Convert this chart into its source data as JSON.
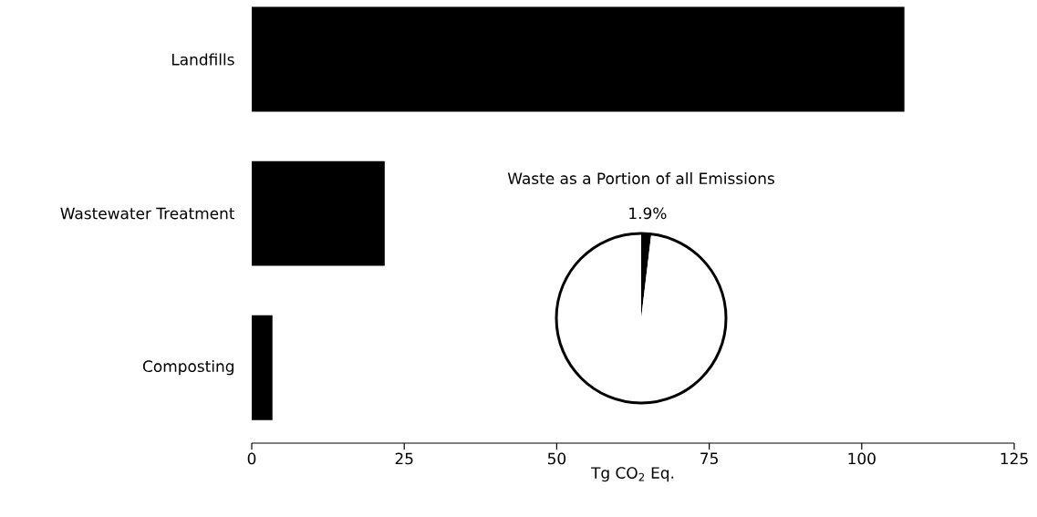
{
  "chart_data": [
    {
      "type": "bar",
      "orientation": "horizontal",
      "categories": [
        "Landfills",
        "Wastewater Treatment",
        "Composting"
      ],
      "values": [
        107,
        21.8,
        3.4
      ],
      "color": "#000000",
      "xlabel": "Tg CO$_{2}$ Eq.",
      "xlim": [
        0,
        125
      ],
      "xticks": [
        0,
        25,
        50,
        75,
        100,
        125
      ],
      "grid": false
    },
    {
      "type": "pie",
      "title": "Waste as a Portion of all Emissions",
      "categories": [
        null,
        null
      ],
      "values": [
        1.9,
        98.1
      ],
      "colors": [
        "#000000",
        "#ffffff"
      ],
      "value_labels": [
        "1.9%",
        null
      ]
    }
  ]
}
